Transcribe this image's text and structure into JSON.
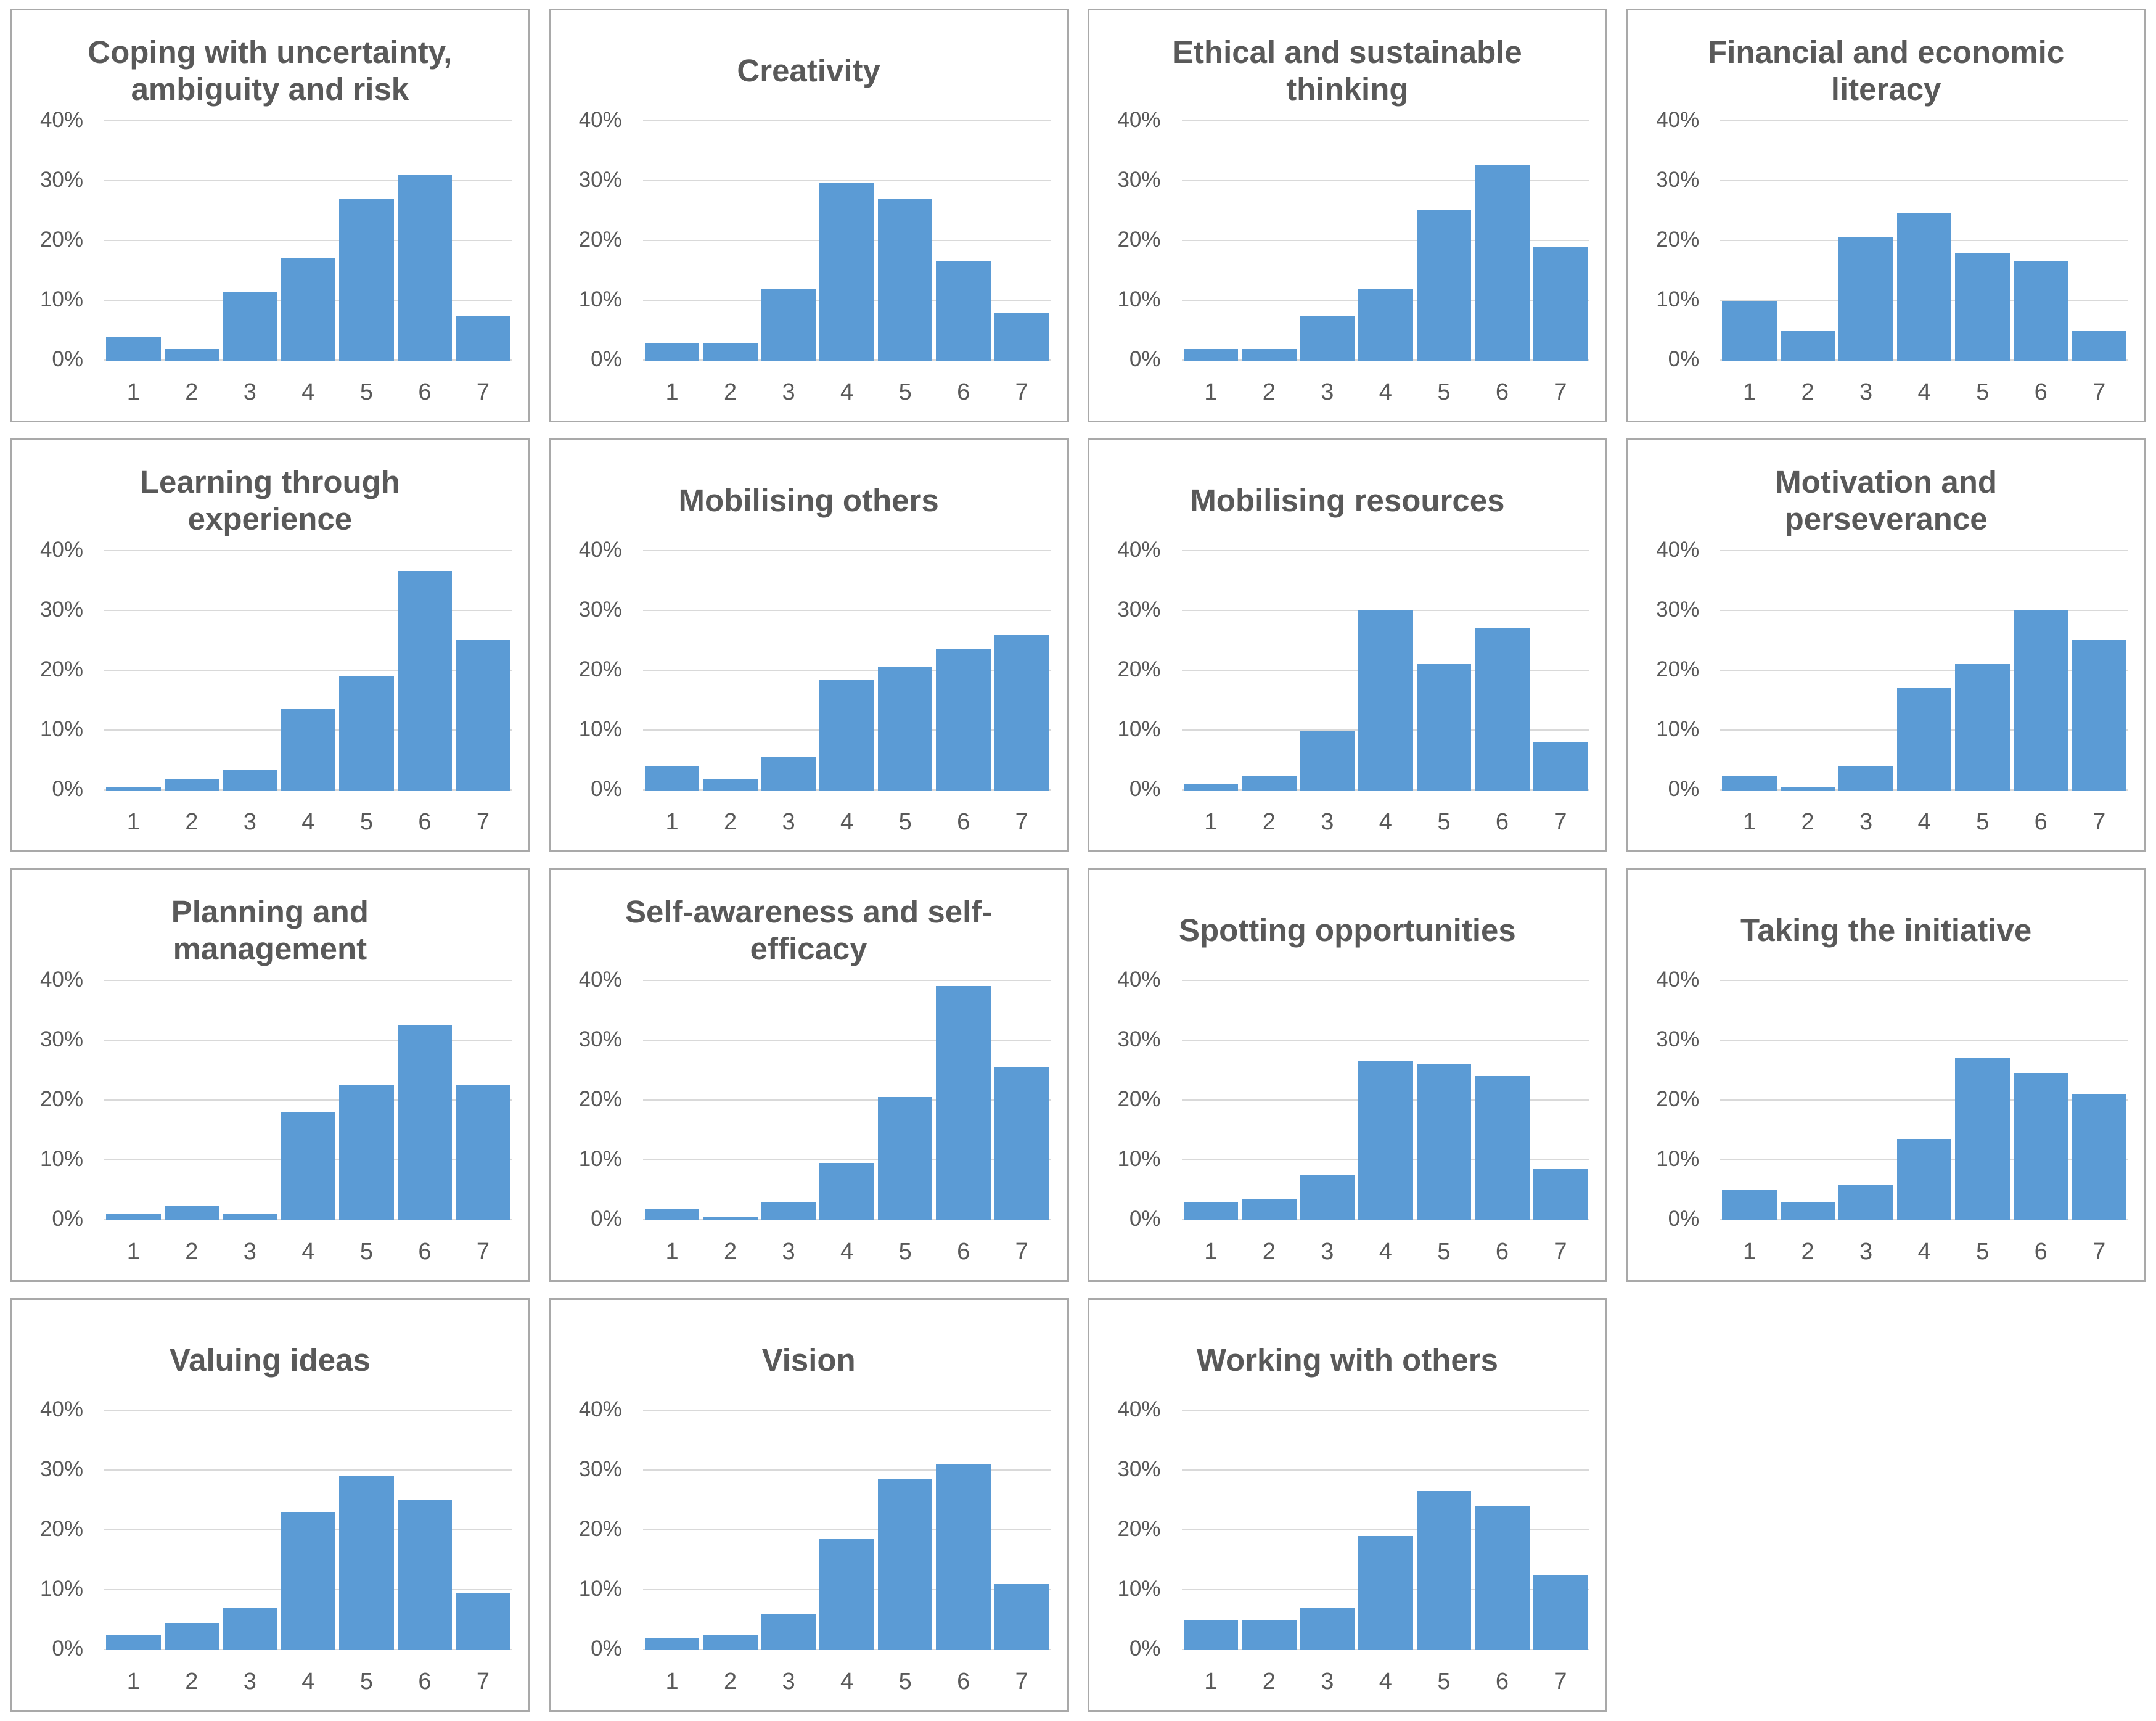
{
  "page": {
    "background_color": "#ffffff",
    "description_layout": "grid of 15 bar charts, 4 columns, last row has 3 charts and one empty cell"
  },
  "chart_defaults": {
    "type": "bar",
    "categories": [
      "1",
      "2",
      "3",
      "4",
      "5",
      "6",
      "7"
    ],
    "ylim": [
      0,
      40
    ],
    "ytick_labels": [
      "40%",
      "30%",
      "20%",
      "10%",
      "0%"
    ],
    "grid": true,
    "legend": null,
    "bar_color": "#5B9BD5",
    "gridline_color": "#d9d9d9",
    "title_color": "#595959",
    "axis_label_color": "#595959"
  },
  "chart_data": [
    {
      "type": "bar",
      "title": "Coping with uncertainty,\nambiguity and risk",
      "categories": [
        "1",
        "2",
        "3",
        "4",
        "5",
        "6",
        "7"
      ],
      "values": [
        4,
        2,
        11.5,
        17,
        27,
        31,
        7.5
      ],
      "ylim": [
        0,
        40
      ]
    },
    {
      "type": "bar",
      "title": "Creativity",
      "categories": [
        "1",
        "2",
        "3",
        "4",
        "5",
        "6",
        "7"
      ],
      "values": [
        3,
        3,
        12,
        29.5,
        27,
        16.5,
        8
      ],
      "ylim": [
        0,
        40
      ]
    },
    {
      "type": "bar",
      "title": "Ethical and sustainable\nthinking",
      "categories": [
        "1",
        "2",
        "3",
        "4",
        "5",
        "6",
        "7"
      ],
      "values": [
        2,
        2,
        7.5,
        12,
        25,
        32.5,
        19
      ],
      "ylim": [
        0,
        40
      ]
    },
    {
      "type": "bar",
      "title": "Financial and economic\nliteracy",
      "categories": [
        "1",
        "2",
        "3",
        "4",
        "5",
        "6",
        "7"
      ],
      "values": [
        10,
        5,
        20.5,
        24.5,
        18,
        16.5,
        5
      ],
      "ylim": [
        0,
        40
      ]
    },
    {
      "type": "bar",
      "title": "Learning through\nexperience",
      "categories": [
        "1",
        "2",
        "3",
        "4",
        "5",
        "6",
        "7"
      ],
      "values": [
        0.5,
        2,
        3.5,
        13.5,
        19,
        36.5,
        25
      ],
      "ylim": [
        0,
        40
      ]
    },
    {
      "type": "bar",
      "title": "Mobilising others",
      "categories": [
        "1",
        "2",
        "3",
        "4",
        "5",
        "6",
        "7"
      ],
      "values": [
        4,
        2,
        5.5,
        18.5,
        20.5,
        23.5,
        26
      ],
      "ylim": [
        0,
        40
      ]
    },
    {
      "type": "bar",
      "title": "Mobilising resources",
      "categories": [
        "1",
        "2",
        "3",
        "4",
        "5",
        "6",
        "7"
      ],
      "values": [
        1,
        2.5,
        10,
        30,
        21,
        27,
        8
      ],
      "ylim": [
        0,
        40
      ]
    },
    {
      "type": "bar",
      "title": "Motivation and\nperseverance",
      "categories": [
        "1",
        "2",
        "3",
        "4",
        "5",
        "6",
        "7"
      ],
      "values": [
        2.5,
        0.5,
        4,
        17,
        21,
        30,
        25
      ],
      "ylim": [
        0,
        40
      ]
    },
    {
      "type": "bar",
      "title": "Planning and\nmanagement",
      "categories": [
        "1",
        "2",
        "3",
        "4",
        "5",
        "6",
        "7"
      ],
      "values": [
        1,
        2.5,
        1,
        18,
        22.5,
        32.5,
        22.5
      ],
      "ylim": [
        0,
        40
      ]
    },
    {
      "type": "bar",
      "title": "Self-awareness and self-\nefficacy",
      "categories": [
        "1",
        "2",
        "3",
        "4",
        "5",
        "6",
        "7"
      ],
      "values": [
        2,
        0.5,
        3,
        9.5,
        20.5,
        39,
        25.5
      ],
      "ylim": [
        0,
        40
      ]
    },
    {
      "type": "bar",
      "title": "Spotting opportunities",
      "categories": [
        "1",
        "2",
        "3",
        "4",
        "5",
        "6",
        "7"
      ],
      "values": [
        3,
        3.5,
        7.5,
        26.5,
        26,
        24,
        8.5
      ],
      "ylim": [
        0,
        40
      ]
    },
    {
      "type": "bar",
      "title": "Taking the initiative",
      "categories": [
        "1",
        "2",
        "3",
        "4",
        "5",
        "6",
        "7"
      ],
      "values": [
        5,
        3,
        6,
        13.5,
        27,
        24.5,
        21
      ],
      "ylim": [
        0,
        40
      ]
    },
    {
      "type": "bar",
      "title": "Valuing ideas",
      "categories": [
        "1",
        "2",
        "3",
        "4",
        "5",
        "6",
        "7"
      ],
      "values": [
        2.5,
        4.5,
        7,
        23,
        29,
        25,
        9.5
      ],
      "ylim": [
        0,
        40
      ]
    },
    {
      "type": "bar",
      "title": "Vision",
      "categories": [
        "1",
        "2",
        "3",
        "4",
        "5",
        "6",
        "7"
      ],
      "values": [
        2,
        2.5,
        6,
        18.5,
        28.5,
        31,
        11
      ],
      "ylim": [
        0,
        40
      ]
    },
    {
      "type": "bar",
      "title": "Working with others",
      "categories": [
        "1",
        "2",
        "3",
        "4",
        "5",
        "6",
        "7"
      ],
      "values": [
        5,
        5,
        7,
        19,
        26.5,
        24,
        12.5
      ],
      "ylim": [
        0,
        40
      ]
    }
  ]
}
